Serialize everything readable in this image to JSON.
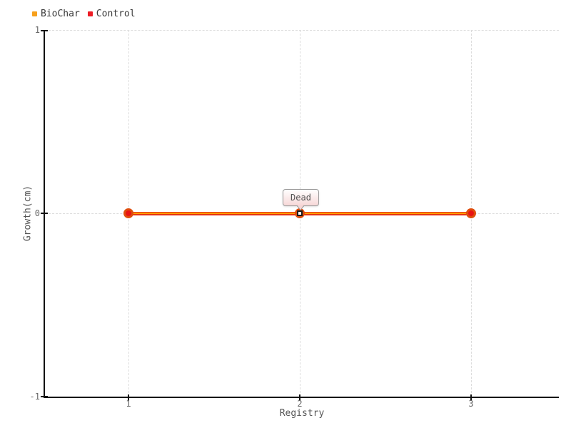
{
  "legend": {
    "items": [
      {
        "label": "BioChar",
        "color": "#f7a01c"
      },
      {
        "label": "Control",
        "color": "#ed1c24"
      }
    ]
  },
  "axes": {
    "y": {
      "title": "Growth(cm)",
      "ticks": [
        "1",
        "0",
        "-1"
      ]
    },
    "x": {
      "title": "Registry",
      "ticks": [
        "1",
        "2",
        "3"
      ]
    }
  },
  "tooltip": {
    "text": "Dead",
    "border_color": "#9a9a9a"
  },
  "series_style": {
    "control_line": "#e53210",
    "biochar_line": "#ff9c00",
    "marker_fill": "#e81313",
    "marker_ring": "#df4d0d"
  },
  "chart_data": {
    "type": "line",
    "title": "",
    "x": [
      1,
      2,
      3
    ],
    "series": [
      {
        "name": "BioChar",
        "color": "#f7a01c",
        "values": [
          0,
          0,
          0
        ]
      },
      {
        "name": "Control",
        "color": "#ed1c24",
        "values": [
          0,
          0,
          0
        ]
      }
    ],
    "xlabel": "Registry",
    "ylabel": "Growth(cm)",
    "xlim": [
      0.5,
      3.5
    ],
    "ylim": [
      -1,
      1
    ],
    "xticks": [
      1,
      2,
      3
    ],
    "yticks": [
      -1,
      0,
      1
    ],
    "grid": true,
    "grid_style": "dashed",
    "legend_position": "top-left",
    "annotations": [
      {
        "text": "Dead",
        "x": 2,
        "y": 0
      }
    ]
  }
}
